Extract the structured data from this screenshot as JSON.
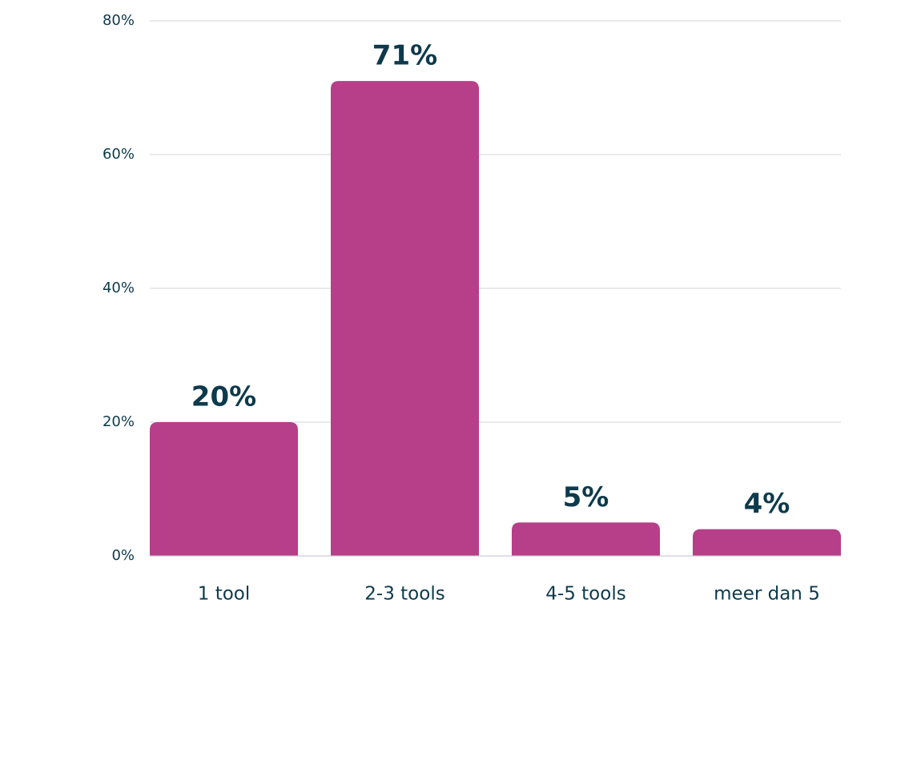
{
  "chart_data": {
    "type": "bar",
    "categories": [
      "1 tool",
      "2-3 tools",
      "4-5 tools",
      "meer dan 5"
    ],
    "values": [
      20,
      71,
      5,
      4
    ],
    "value_labels": [
      "20%",
      "71%",
      "5%",
      "4%"
    ],
    "color": "#b73e88",
    "ylim": [
      0,
      80
    ],
    "yticks": [
      {
        "value": 0,
        "label": "0%"
      },
      {
        "value": 20,
        "label": "20%"
      },
      {
        "value": 40,
        "label": "40%"
      },
      {
        "value": 60,
        "label": "60%"
      },
      {
        "value": 80,
        "label": "80%"
      }
    ],
    "grid": true
  }
}
